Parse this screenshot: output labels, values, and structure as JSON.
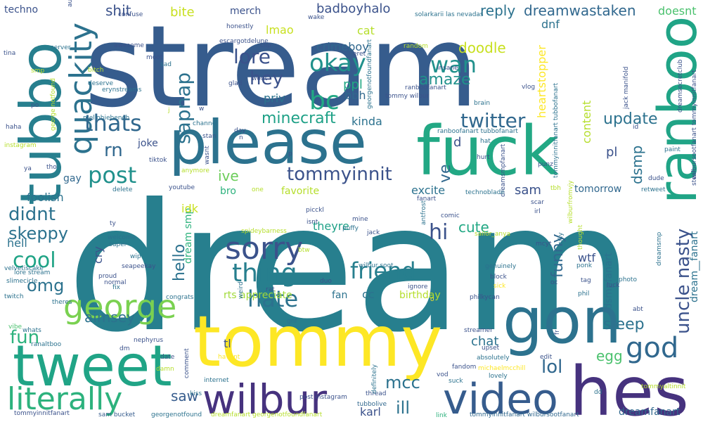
{
  "background": "#ffffff",
  "palette": {
    "purple": "#440154",
    "indigo": "#46327e",
    "blue": "#365c8d",
    "teal_blue": "#277f8e",
    "teal": "#1fa187",
    "green": "#4ac16d",
    "lime": "#a0da39",
    "yellow": "#fde725"
  },
  "words": [
    {
      "text": "dream",
      "color": "#277f8e"
    },
    {
      "text": "stream",
      "color": "#365c8d"
    },
    {
      "text": "tommy",
      "color": "#fde725"
    },
    {
      "text": "please",
      "color": "#2c728e"
    },
    {
      "text": "fuck",
      "color": "#22a884"
    },
    {
      "text": "tubbo",
      "color": "#277f8e"
    },
    {
      "text": "tweet",
      "color": "#20a486"
    },
    {
      "text": "gon",
      "color": "#2c728e"
    },
    {
      "text": "hes",
      "color": "#46327e"
    },
    {
      "text": "video",
      "color": "#365c8d"
    },
    {
      "text": "wilbur",
      "color": "#46327e"
    },
    {
      "text": "ranboo",
      "color": "#20a486"
    },
    {
      "text": "quackity",
      "color": "#2c728e"
    },
    {
      "text": "george",
      "color": "#7ad151"
    },
    {
      "text": "literally",
      "color": "#2db27d"
    },
    {
      "text": "sorry",
      "color": "#3b528b"
    },
    {
      "text": "thing",
      "color": "#277f8e"
    },
    {
      "text": "friend",
      "color": "#277f8e"
    },
    {
      "text": "god",
      "color": "#31688e"
    },
    {
      "text": "hate",
      "color": "#2c728e"
    },
    {
      "text": "okay",
      "color": "#21918c"
    },
    {
      "text": "bc",
      "color": "#22a884"
    },
    {
      "text": "wan",
      "color": "#21918c"
    },
    {
      "text": "thats",
      "color": "#31688e"
    },
    {
      "text": "twitter",
      "color": "#31688e"
    },
    {
      "text": "post",
      "color": "#21918c"
    },
    {
      "text": "tommyinnit",
      "color": "#3b528b"
    },
    {
      "text": "lore",
      "color": "#3b528b"
    },
    {
      "text": "sapnap",
      "color": "#2c728e"
    },
    {
      "text": "uncle nasty",
      "color": "#3b528b"
    },
    {
      "text": "cool",
      "color": "#20a486"
    },
    {
      "text": "omg",
      "color": "#2c728e"
    },
    {
      "text": "didnt",
      "color": "#2c728e"
    },
    {
      "text": "skeppy",
      "color": "#2c728e"
    },
    {
      "text": "fun",
      "color": "#2db27d"
    },
    {
      "text": "hi",
      "color": "#3b528b"
    },
    {
      "text": "rn",
      "color": "#31688e"
    },
    {
      "text": "hey",
      "color": "#3b528b"
    },
    {
      "text": "minecraft",
      "color": "#1fa187"
    },
    {
      "text": "amaze",
      "color": "#21918c"
    },
    {
      "text": "update",
      "color": "#2c728e"
    },
    {
      "text": "sleep",
      "color": "#2c728e"
    },
    {
      "text": "lol",
      "color": "#31688e"
    },
    {
      "text": "mcc",
      "color": "#2c728e"
    },
    {
      "text": "ill",
      "color": "#2c728e"
    },
    {
      "text": "saw",
      "color": "#365c8d"
    },
    {
      "text": "aimsey",
      "color": "#2c728e"
    },
    {
      "text": "hello",
      "color": "#2c728e"
    },
    {
      "text": "funny",
      "color": "#31688e"
    },
    {
      "text": "dsmp",
      "color": "#2c728e"
    },
    {
      "text": "ive",
      "color": "#6ccd5a"
    },
    {
      "text": "cute",
      "color": "#22a884"
    },
    {
      "text": "egg",
      "color": "#4ac16d"
    },
    {
      "text": "chat",
      "color": "#2c728e"
    },
    {
      "text": "sam",
      "color": "#3b528b"
    },
    {
      "text": "dreamwastaken",
      "color": "#31688e"
    },
    {
      "text": "badboyhalo",
      "color": "#3b528b"
    },
    {
      "text": "bite",
      "color": "#c8e020"
    },
    {
      "text": "shit",
      "color": "#3b528b"
    },
    {
      "text": "reply",
      "color": "#2c728e"
    },
    {
      "text": "doodle",
      "color": "#c8e020"
    },
    {
      "text": "crimeboy",
      "color": "#31688e"
    },
    {
      "text": "lmao",
      "color": "#c8e020"
    },
    {
      "text": "ppl",
      "color": "#22a884"
    },
    {
      "text": "priv",
      "color": "#2c728e"
    },
    {
      "text": "bbh",
      "color": "#31688e"
    },
    {
      "text": "kinda",
      "color": "#2c728e"
    },
    {
      "text": "heartstopper",
      "color": "#fde725"
    },
    {
      "text": "content",
      "color": "#b5de2b"
    },
    {
      "text": "dnf",
      "color": "#2c728e"
    },
    {
      "text": "doesnt",
      "color": "#4ac16d"
    },
    {
      "text": "cat",
      "color": "#b5de2b"
    },
    {
      "text": "merch",
      "color": "#3b528b"
    },
    {
      "text": "ve",
      "color": "#31688e"
    },
    {
      "text": "d",
      "color": "#3b528b"
    },
    {
      "text": "excite",
      "color": "#2c728e"
    },
    {
      "text": "favorite",
      "color": "#b5de2b"
    },
    {
      "text": "bro",
      "color": "#2db27d"
    },
    {
      "text": "tomorrow",
      "color": "#31688e"
    },
    {
      "text": "pl",
      "color": "#3b528b"
    },
    {
      "text": "wtf",
      "color": "#3b528b"
    },
    {
      "text": "theyre",
      "color": "#1fa187"
    },
    {
      "text": "dream smp",
      "color": "#2db27d"
    },
    {
      "text": "idk",
      "color": "#c8e020"
    },
    {
      "text": "rts appreciate",
      "color": "#a0da39"
    },
    {
      "text": "cc",
      "color": "#2c728e"
    },
    {
      "text": "fan",
      "color": "#2c728e"
    },
    {
      "text": "birthday",
      "color": "#b5de2b"
    },
    {
      "text": "tl",
      "color": "#3b528b"
    },
    {
      "text": "karl",
      "color": "#3b528b"
    },
    {
      "text": "dream__fanart",
      "color": "#2c728e"
    },
    {
      "text": "dsmpfanart",
      "color": "#2c728e"
    },
    {
      "text": "joke",
      "color": "#3b528b"
    },
    {
      "text": "gay",
      "color": "#31688e"
    },
    {
      "text": "cry",
      "color": "#3b528b"
    },
    {
      "text": "foolish",
      "color": "#2c728e"
    },
    {
      "text": "hell",
      "color": "#2c728e"
    },
    {
      "text": "techno",
      "color": "#3b528b"
    },
    {
      "text": "dreamfanart",
      "color": "#31688e"
    },
    {
      "text": "tommyinnitfanart",
      "color": "#3b528b"
    },
    {
      "text": "sam bucket",
      "color": "#365c8d"
    },
    {
      "text": "georgenotfound",
      "color": "#2c728e"
    },
    {
      "text": "dreamfanart georgenotfoundfanart",
      "color": "#b5de2b"
    },
    {
      "text": "post instagram",
      "color": "#3b528b"
    },
    {
      "text": "tommyinnitfanart wilbursootfanart",
      "color": "#31688e"
    },
    {
      "text": "link",
      "color": "#2db27d"
    },
    {
      "text": "suck",
      "color": "#2c728e"
    },
    {
      "text": "lovely",
      "color": "#2c728e"
    },
    {
      "text": "fandom",
      "color": "#3b528b"
    },
    {
      "text": "vod",
      "color": "#3b528b"
    },
    {
      "text": "michaelmcchill",
      "color": "#fde725"
    },
    {
      "text": "edit",
      "color": "#3b528b"
    },
    {
      "text": "absolutely",
      "color": "#2c728e"
    },
    {
      "text": "upset",
      "color": "#3b528b"
    },
    {
      "text": "streamer",
      "color": "#3b528b"
    },
    {
      "text": "genuinely",
      "color": "#2c728e"
    },
    {
      "text": "block",
      "color": "#3b528b"
    },
    {
      "text": "sick",
      "color": "#fde725"
    },
    {
      "text": "wilbur soot",
      "color": "#2c728e"
    },
    {
      "text": "duo",
      "color": "#3b528b"
    },
    {
      "text": "gnf",
      "color": "#2c728e"
    },
    {
      "text": "ignore",
      "color": "#3b528b"
    },
    {
      "text": "thread",
      "color": "#3b528b"
    },
    {
      "text": "tubbolive",
      "color": "#31688e"
    },
    {
      "text": "definitely",
      "color": "#2c728e"
    },
    {
      "text": "havent",
      "color": "#fde725"
    },
    {
      "text": "internet",
      "color": "#2c728e"
    },
    {
      "text": "kiss",
      "color": "#2c728e"
    },
    {
      "text": "damn",
      "color": "#b5de2b"
    },
    {
      "text": "date",
      "color": "#3b528b"
    },
    {
      "text": "nephyrus",
      "color": "#3b528b"
    },
    {
      "text": "dm",
      "color": "#3b528b"
    },
    {
      "text": "comment",
      "color": "#3b528b"
    },
    {
      "text": "ranaltboo",
      "color": "#2c728e"
    },
    {
      "text": "whats",
      "color": "#2c728e"
    },
    {
      "text": "vibe",
      "color": "#4ac16d"
    },
    {
      "text": "slimecicle",
      "color": "#2c728e"
    },
    {
      "text": "twitch",
      "color": "#2c728e"
    },
    {
      "text": "theres",
      "color": "#2c728e"
    },
    {
      "text": "congrats",
      "color": "#2c728e"
    },
    {
      "text": "rat",
      "color": "#3b528b"
    },
    {
      "text": "weird",
      "color": "#2c728e"
    },
    {
      "text": "lore stream",
      "color": "#2c728e"
    },
    {
      "text": "proud",
      "color": "#3b528b"
    },
    {
      "text": "fix",
      "color": "#2c728e"
    },
    {
      "text": "normal",
      "color": "#3b528b"
    },
    {
      "text": "velvetiscake",
      "color": "#2c728e"
    },
    {
      "text": "seapeekay",
      "color": "#3b528b"
    },
    {
      "text": "wip",
      "color": "#2c728e"
    },
    {
      "text": "super",
      "color": "#2c728e"
    },
    {
      "text": "welcome",
      "color": "#2c728e"
    },
    {
      "text": "ty",
      "color": "#3b528b"
    },
    {
      "text": "spideybarness",
      "color": "#b5de2b"
    },
    {
      "text": "jack",
      "color": "#3b528b"
    },
    {
      "text": "puffy",
      "color": "#2c728e"
    },
    {
      "text": "mine",
      "color": "#3b528b"
    },
    {
      "text": "btw",
      "color": "#b5de2b"
    },
    {
      "text": "isnt",
      "color": "#3b528b"
    },
    {
      "text": "picckl",
      "color": "#3b528b"
    },
    {
      "text": "antfrost",
      "color": "#2c728e"
    },
    {
      "text": "fanart",
      "color": "#3b528b"
    },
    {
      "text": "comic",
      "color": "#3b528b"
    },
    {
      "text": "sailor_anya",
      "color": "#b5de2b"
    },
    {
      "text": "scar",
      "color": "#3b528b"
    },
    {
      "text": "irl",
      "color": "#3b528b"
    },
    {
      "text": "mcyt",
      "color": "#3b528b"
    },
    {
      "text": "silly",
      "color": "#2c728e"
    },
    {
      "text": "ponk",
      "color": "#2c728e"
    },
    {
      "text": "tag",
      "color": "#3b528b"
    },
    {
      "text": "phil",
      "color": "#2c728e"
    },
    {
      "text": "luck",
      "color": "#3b528b"
    },
    {
      "text": "oc",
      "color": "#3b528b"
    },
    {
      "text": "philkycan",
      "color": "#3b528b"
    },
    {
      "text": "thought",
      "color": "#b5de2b"
    },
    {
      "text": "dreamsmp",
      "color": "#2c728e"
    },
    {
      "text": "wilburfromvjy",
      "color": "#b5de2b"
    },
    {
      "text": "photo",
      "color": "#2c728e"
    },
    {
      "text": "abt",
      "color": "#3b528b"
    },
    {
      "text": "fr",
      "color": "#3b528b"
    },
    {
      "text": "tommyaltinnit",
      "color": "#b5de2b"
    },
    {
      "text": "dd",
      "color": "#2c728e"
    },
    {
      "text": "dude",
      "color": "#3b528b"
    },
    {
      "text": "retweet",
      "color": "#2c728e"
    },
    {
      "text": "steal",
      "color": "#3b528b"
    },
    {
      "text": "wilbursootfanart tommyinnitfanart",
      "color": "#3b528b"
    },
    {
      "text": "paint",
      "color": "#2c728e"
    },
    {
      "text": "dreamsecretclub",
      "color": "#3b528b"
    },
    {
      "text": "jack manifold",
      "color": "#3b528b"
    },
    {
      "text": "id",
      "color": "#3b528b"
    },
    {
      "text": "hat",
      "color": "#2c728e"
    },
    {
      "text": "hurt",
      "color": "#3b528b"
    },
    {
      "text": "punz",
      "color": "#3b528b"
    },
    {
      "text": "tommyinnitfanart tubbofanart",
      "color": "#2c728e"
    },
    {
      "text": "dreamsmpfanart",
      "color": "#3b528b"
    },
    {
      "text": "tbh",
      "color": "#b5de2b"
    },
    {
      "text": "ranboofanart tubbofanart",
      "color": "#2c728e"
    },
    {
      "text": "brain",
      "color": "#2c728e"
    },
    {
      "text": "vlog",
      "color": "#3b528b"
    },
    {
      "text": "tommy wilbur",
      "color": "#3b528b"
    },
    {
      "text": "ranboofanart",
      "color": "#3b528b"
    },
    {
      "text": "georgenotfoundfanart",
      "color": "#2c728e"
    },
    {
      "text": "random",
      "color": "#b5de2b"
    },
    {
      "text": "insane",
      "color": "#3b528b"
    },
    {
      "text": "eret",
      "color": "#3b528b"
    },
    {
      "text": "solarkarii las nevadas",
      "color": "#2c728e"
    },
    {
      "text": "wake",
      "color": "#3b528b"
    },
    {
      "text": "honestly",
      "color": "#3b528b"
    },
    {
      "text": "escargotdelune",
      "color": "#3b528b"
    },
    {
      "text": "clip",
      "color": "#3b528b"
    },
    {
      "text": "glad",
      "color": "#3b528b"
    },
    {
      "text": "wont",
      "color": "#3b528b"
    },
    {
      "text": "confuse",
      "color": "#3b528b"
    },
    {
      "text": "au",
      "color": "#3b528b"
    },
    {
      "text": "awesome",
      "color": "#3b528b"
    },
    {
      "text": "moot",
      "color": "#3b528b"
    },
    {
      "text": "sad",
      "color": "#2c728e"
    },
    {
      "text": "bitch",
      "color": "#b5de2b"
    },
    {
      "text": "deserve",
      "color": "#2c728e"
    },
    {
      "text": "erynstreams",
      "color": "#2c728e"
    },
    {
      "text": "server",
      "color": "#2c728e"
    },
    {
      "text": "tina",
      "color": "#3b528b"
    },
    {
      "text": "smp",
      "color": "#b5de2b"
    },
    {
      "text": "po",
      "color": "#3b528b"
    },
    {
      "text": "haha",
      "color": "#3b528b"
    },
    {
      "text": "instagram",
      "color": "#b5de2b"
    },
    {
      "text": "ya",
      "color": "#3b528b"
    },
    {
      "text": "tho",
      "color": "#3b528b"
    },
    {
      "text": "mellohiebench",
      "color": "#2c728e"
    },
    {
      "text": "channel",
      "color": "#2c728e"
    },
    {
      "text": "stan",
      "color": "#3b528b"
    },
    {
      "text": "day",
      "color": "#3b528b"
    },
    {
      "text": "n",
      "color": "#3b528b"
    },
    {
      "text": "j",
      "color": "#b5de2b"
    },
    {
      "text": "w",
      "color": "#3b528b"
    },
    {
      "text": "tiktok",
      "color": "#3b528b"
    },
    {
      "text": "wasnt",
      "color": "#3b528b"
    },
    {
      "text": "anymore",
      "color": "#b5de2b"
    },
    {
      "text": "delete",
      "color": "#2c728e"
    },
    {
      "text": "youtube",
      "color": "#3b528b"
    },
    {
      "text": "one",
      "color": "#b5de2b"
    },
    {
      "text": "p",
      "color": "#3b528b"
    },
    {
      "text": "technoblade",
      "color": "#2c728e"
    },
    {
      "text": "george notfound",
      "color": "#b5de2b"
    },
    {
      "text": "o",
      "color": "#fde725"
    }
  ]
}
